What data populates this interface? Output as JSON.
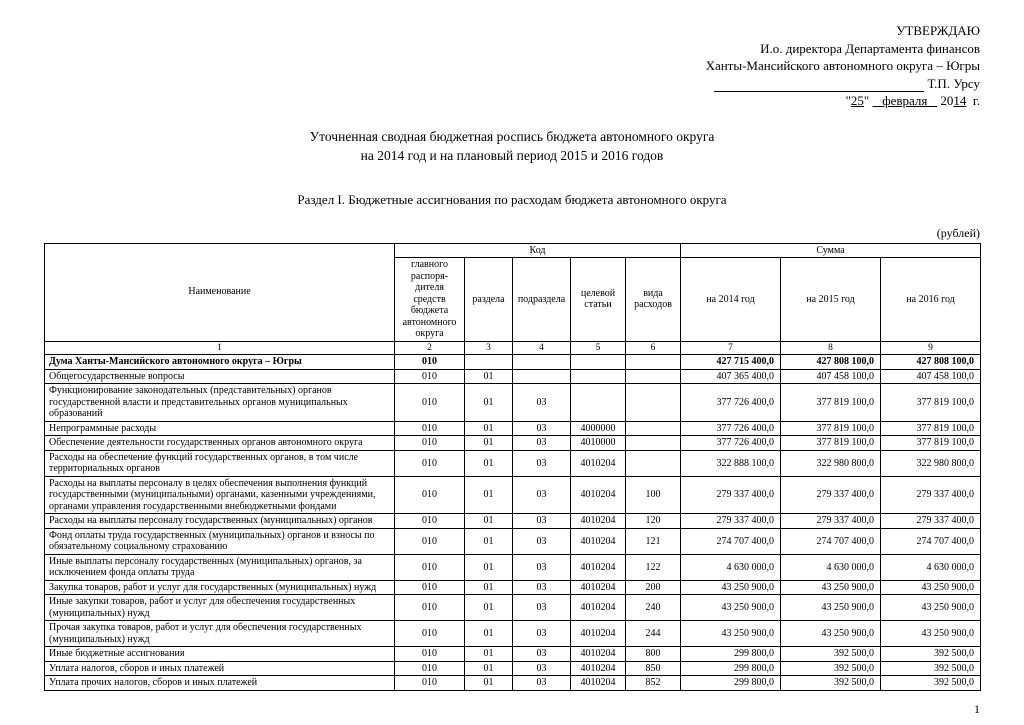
{
  "header": {
    "approve": "УТВЕРЖДАЮ",
    "position": "И.о. директора Департамента финансов",
    "org": "Ханты-Мансийского автономного округа – Югры",
    "name": "Т.П. Урсу",
    "day": "25",
    "month": "февраля",
    "year_prefix": "20",
    "year_suffix": "14",
    "year_tail": "г."
  },
  "title1": "Уточненная сводная бюджетная роспись бюджета автономного округа",
  "title2": "на 2014 год и на плановый период 2015 и 2016 годов",
  "section": "Раздел I. Бюджетные ассигнования по расходам бюджета автономного округа",
  "unit": "(рублей)",
  "thead": {
    "name": "Наименование",
    "kod": "Код",
    "sum": "Сумма",
    "glav": "главного распоря-дителя средств бюджета автономного округа",
    "razd": "раздела",
    "podr": "подраздела",
    "cel": "целевой статьи",
    "vid": "вида расходов",
    "y1": "на 2014 год",
    "y2": "на 2015 год",
    "y3": "на 2016 год",
    "n1": "1",
    "n2": "2",
    "n3": "3",
    "n4": "4",
    "n5": "5",
    "n6": "6",
    "n7": "7",
    "n8": "8",
    "n9": "9"
  },
  "rows": [
    {
      "bold": true,
      "name": "Дума Ханты-Мансийского автономного округа – Югры",
      "c1": "010",
      "c2": "",
      "c3": "",
      "c4": "",
      "c5": "",
      "s1": "427 715 400,0",
      "s2": "427 808 100,0",
      "s3": "427 808 100,0"
    },
    {
      "name": "Общегосударственные вопросы",
      "c1": "010",
      "c2": "01",
      "c3": "",
      "c4": "",
      "c5": "",
      "s1": "407 365 400,0",
      "s2": "407 458 100,0",
      "s3": "407 458 100,0"
    },
    {
      "name": "Функционирование законодательных (представительных) органов государственной власти и представительных органов муниципальных образований",
      "c1": "010",
      "c2": "01",
      "c3": "03",
      "c4": "",
      "c5": "",
      "s1": "377 726 400,0",
      "s2": "377 819 100,0",
      "s3": "377 819 100,0"
    },
    {
      "name": "Непрограммные расходы",
      "c1": "010",
      "c2": "01",
      "c3": "03",
      "c4": "4000000",
      "c5": "",
      "s1": "377 726 400,0",
      "s2": "377 819 100,0",
      "s3": "377 819 100,0"
    },
    {
      "name": "Обеспечение деятельности государственных органов автономного округа",
      "c1": "010",
      "c2": "01",
      "c3": "03",
      "c4": "4010000",
      "c5": "",
      "s1": "377 726 400,0",
      "s2": "377 819 100,0",
      "s3": "377 819 100,0"
    },
    {
      "name": "Расходы на обеспечение функций государственных органов, в том числе территориальных органов",
      "c1": "010",
      "c2": "01",
      "c3": "03",
      "c4": "4010204",
      "c5": "",
      "s1": "322 888 100,0",
      "s2": "322 980 800,0",
      "s3": "322 980 800,0"
    },
    {
      "name": "Расходы на выплаты персоналу в целях обеспечения выполнения функций государственными (муниципальными) органами, казенными учреждениями, органами управления государственными внебюджетными фондами",
      "c1": "010",
      "c2": "01",
      "c3": "03",
      "c4": "4010204",
      "c5": "100",
      "s1": "279 337 400,0",
      "s2": "279 337 400,0",
      "s3": "279 337 400,0"
    },
    {
      "name": "Расходы на выплаты персоналу государственных (муниципальных) органов",
      "c1": "010",
      "c2": "01",
      "c3": "03",
      "c4": "4010204",
      "c5": "120",
      "s1": "279 337 400,0",
      "s2": "279 337 400,0",
      "s3": "279 337 400,0"
    },
    {
      "name": "Фонд оплаты труда государственных (муниципальных) органов и взносы по обязательному социальному страхованию",
      "c1": "010",
      "c2": "01",
      "c3": "03",
      "c4": "4010204",
      "c5": "121",
      "s1": "274 707 400,0",
      "s2": "274 707 400,0",
      "s3": "274 707 400,0"
    },
    {
      "name": "Иные выплаты персоналу государственных (муниципальных) органов, за исключением фонда оплаты труда",
      "c1": "010",
      "c2": "01",
      "c3": "03",
      "c4": "4010204",
      "c5": "122",
      "s1": "4 630 000,0",
      "s2": "4 630 000,0",
      "s3": "4 630 000,0"
    },
    {
      "name": "Закупка товаров, работ и услуг для государственных (муниципальных) нужд",
      "c1": "010",
      "c2": "01",
      "c3": "03",
      "c4": "4010204",
      "c5": "200",
      "s1": "43 250 900,0",
      "s2": "43 250 900,0",
      "s3": "43 250 900,0"
    },
    {
      "name": "Иные закупки товаров, работ и услуг для обеспечения государственных (муниципальных) нужд",
      "c1": "010",
      "c2": "01",
      "c3": "03",
      "c4": "4010204",
      "c5": "240",
      "s1": "43 250 900,0",
      "s2": "43 250 900,0",
      "s3": "43 250 900,0"
    },
    {
      "name": "Прочая закупка товаров, работ и услуг для обеспечения государственных (муниципальных) нужд",
      "c1": "010",
      "c2": "01",
      "c3": "03",
      "c4": "4010204",
      "c5": "244",
      "s1": "43 250 900,0",
      "s2": "43 250 900,0",
      "s3": "43 250 900,0"
    },
    {
      "name": "Иные бюджетные ассигнования",
      "c1": "010",
      "c2": "01",
      "c3": "03",
      "c4": "4010204",
      "c5": "800",
      "s1": "299 800,0",
      "s2": "392 500,0",
      "s3": "392 500,0"
    },
    {
      "name": "Уплата налогов, сборов и иных платежей",
      "c1": "010",
      "c2": "01",
      "c3": "03",
      "c4": "4010204",
      "c5": "850",
      "s1": "299 800,0",
      "s2": "392 500,0",
      "s3": "392 500,0"
    },
    {
      "name": "Уплата прочих налогов, сборов и иных платежей",
      "c1": "010",
      "c2": "01",
      "c3": "03",
      "c4": "4010204",
      "c5": "852",
      "s1": "299 800,0",
      "s2": "392 500,0",
      "s3": "392 500,0"
    }
  ],
  "pagenum": "1"
}
